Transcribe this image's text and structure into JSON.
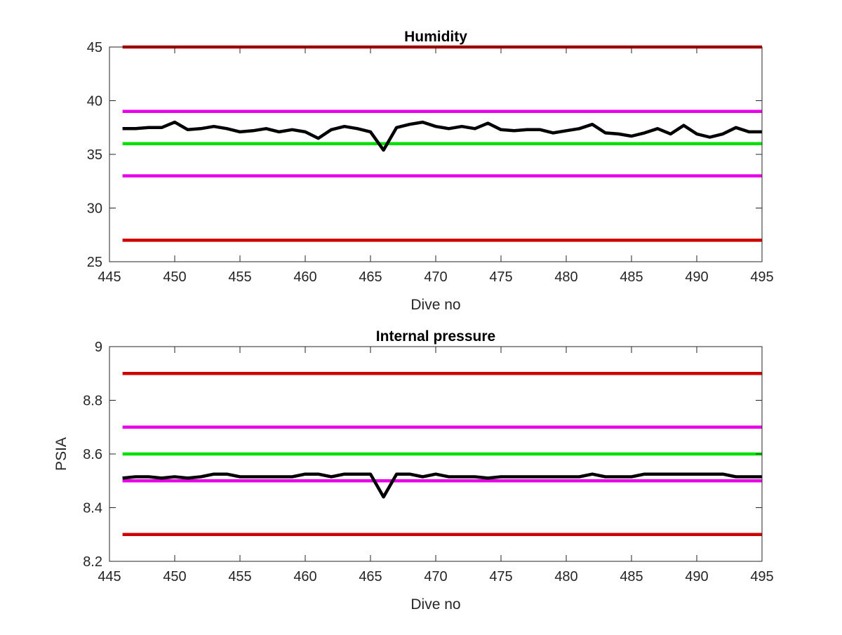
{
  "chart_data": [
    {
      "type": "line",
      "title": "Humidity",
      "xlabel": "Dive no",
      "ylabel": "",
      "xlim": [
        445,
        495
      ],
      "ylim": [
        25,
        45
      ],
      "xticks": [
        "445",
        "450",
        "455",
        "460",
        "465",
        "470",
        "475",
        "480",
        "485",
        "490",
        "495"
      ],
      "yticks": [
        "25",
        "30",
        "35",
        "40",
        "45"
      ],
      "grid": false,
      "reference_lines": [
        {
          "y": 45,
          "color": "#cc0000"
        },
        {
          "y": 39,
          "color": "#e800e8"
        },
        {
          "y": 36,
          "color": "#00e000"
        },
        {
          "y": 33,
          "color": "#e800e8"
        },
        {
          "y": 27,
          "color": "#cc0000"
        }
      ],
      "series": [
        {
          "color": "#000000",
          "x": [
            446,
            447,
            448,
            449,
            450,
            451,
            452,
            453,
            454,
            455,
            456,
            457,
            458,
            459,
            460,
            461,
            462,
            463,
            464,
            465,
            466,
            467,
            468,
            469,
            470,
            471,
            472,
            473,
            474,
            475,
            476,
            477,
            478,
            479,
            480,
            481,
            482,
            483,
            484,
            485,
            486,
            487,
            488,
            489,
            490,
            491,
            492,
            493,
            494,
            495
          ],
          "y": [
            37.4,
            37.4,
            37.5,
            37.5,
            38.0,
            37.3,
            37.4,
            37.6,
            37.4,
            37.1,
            37.2,
            37.4,
            37.1,
            37.3,
            37.1,
            36.5,
            37.3,
            37.6,
            37.4,
            37.1,
            35.4,
            37.5,
            37.8,
            38.0,
            37.6,
            37.4,
            37.6,
            37.4,
            37.9,
            37.3,
            37.2,
            37.3,
            37.3,
            37.0,
            37.2,
            37.4,
            37.8,
            37.0,
            36.9,
            36.7,
            37.0,
            37.4,
            36.9,
            37.7,
            36.9,
            36.6,
            36.9,
            37.5,
            37.1,
            37.1
          ]
        }
      ]
    },
    {
      "type": "line",
      "title": "Internal pressure",
      "xlabel": "Dive no",
      "ylabel": "PSIA",
      "xlim": [
        445,
        495
      ],
      "ylim": [
        8.2,
        9
      ],
      "xticks": [
        "445",
        "450",
        "455",
        "460",
        "465",
        "470",
        "475",
        "480",
        "485",
        "490",
        "495"
      ],
      "yticks": [
        "8.2",
        "8.4",
        "8.6",
        "8.8",
        "9"
      ],
      "grid": false,
      "reference_lines": [
        {
          "y": 8.9,
          "color": "#cc0000"
        },
        {
          "y": 8.7,
          "color": "#e800e8"
        },
        {
          "y": 8.6,
          "color": "#00e000"
        },
        {
          "y": 8.5,
          "color": "#e800e8"
        },
        {
          "y": 8.3,
          "color": "#cc0000"
        }
      ],
      "series": [
        {
          "color": "#000000",
          "x": [
            446,
            447,
            448,
            449,
            450,
            451,
            452,
            453,
            454,
            455,
            456,
            457,
            458,
            459,
            460,
            461,
            462,
            463,
            464,
            465,
            466,
            467,
            468,
            469,
            470,
            471,
            472,
            473,
            474,
            475,
            476,
            477,
            478,
            479,
            480,
            481,
            482,
            483,
            484,
            485,
            486,
            487,
            488,
            489,
            490,
            491,
            492,
            493,
            494,
            495
          ],
          "y": [
            8.51,
            8.515,
            8.515,
            8.51,
            8.515,
            8.51,
            8.515,
            8.525,
            8.525,
            8.515,
            8.515,
            8.515,
            8.515,
            8.515,
            8.525,
            8.525,
            8.515,
            8.525,
            8.525,
            8.525,
            8.44,
            8.525,
            8.525,
            8.515,
            8.525,
            8.515,
            8.515,
            8.515,
            8.51,
            8.515,
            8.515,
            8.515,
            8.515,
            8.515,
            8.515,
            8.515,
            8.525,
            8.515,
            8.515,
            8.515,
            8.525,
            8.525,
            8.525,
            8.525,
            8.525,
            8.525,
            8.525,
            8.515,
            8.515,
            8.515
          ]
        }
      ]
    }
  ]
}
